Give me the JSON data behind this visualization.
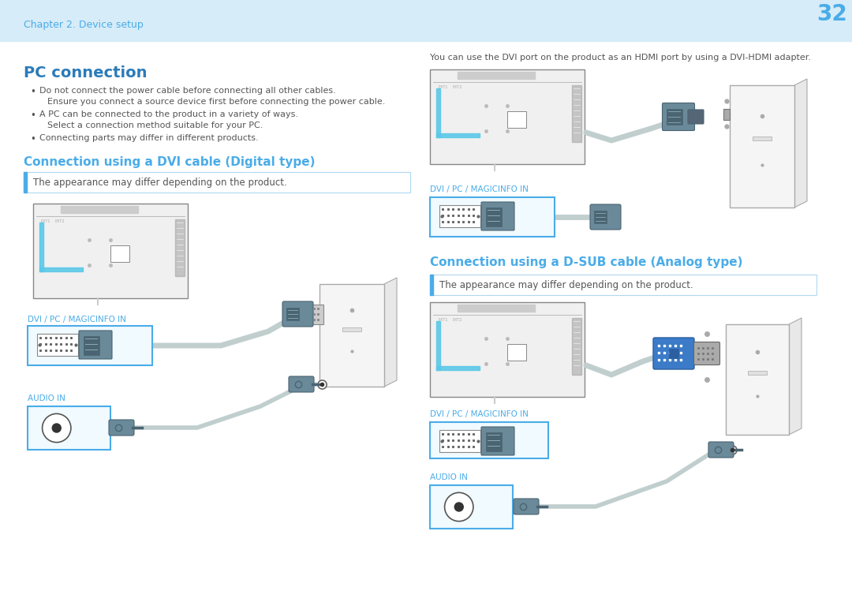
{
  "header_bg": "#D6ECF8",
  "page_bg": "#FFFFFF",
  "header_text": "Chapter 2. Device setup",
  "header_text_color": "#4AACE8",
  "page_number": "32",
  "page_number_color": "#4AACE8",
  "title": "PC connection",
  "title_color": "#2B7BB9",
  "bullet_color": "#555555",
  "section1_title": "Connection using a DVI cable (Digital type)",
  "section1_color": "#4AACE8",
  "section2_title": "Connection using a D-SUB cable (Analog type)",
  "section2_color": "#4AACE8",
  "note_text": "The appearance may differ depending on the product.",
  "note_color": "#555555",
  "note_bar_color": "#4AACE8",
  "note_bg": "#FFFFFF",
  "note_border": "#B0D8F0",
  "dvi_label": "DVI / PC / MAGICINFO IN",
  "dvi_label_color": "#4AACE8",
  "audio_label": "AUDIO IN",
  "audio_label_color": "#4AACE8",
  "hdmi_note": "You can use the DVI port on the product as an HDMI port by using a DVI-HDMI adapter.",
  "hdmi_note_color": "#555555",
  "connector_dark": "#4A6472",
  "connector_mid": "#6A8A9A",
  "connector_light": "#8AACBA",
  "cable_color": "#C0CECE",
  "monitor_border": "#888888",
  "monitor_fill": "#F8F8F8",
  "pc_border": "#AAAAAA",
  "pc_fill": "#F5F5F5",
  "blue_connector": "#3B7BC8",
  "cyan_box_border": "#4AACE8",
  "cyan_box_fill": "#F0FAFF"
}
